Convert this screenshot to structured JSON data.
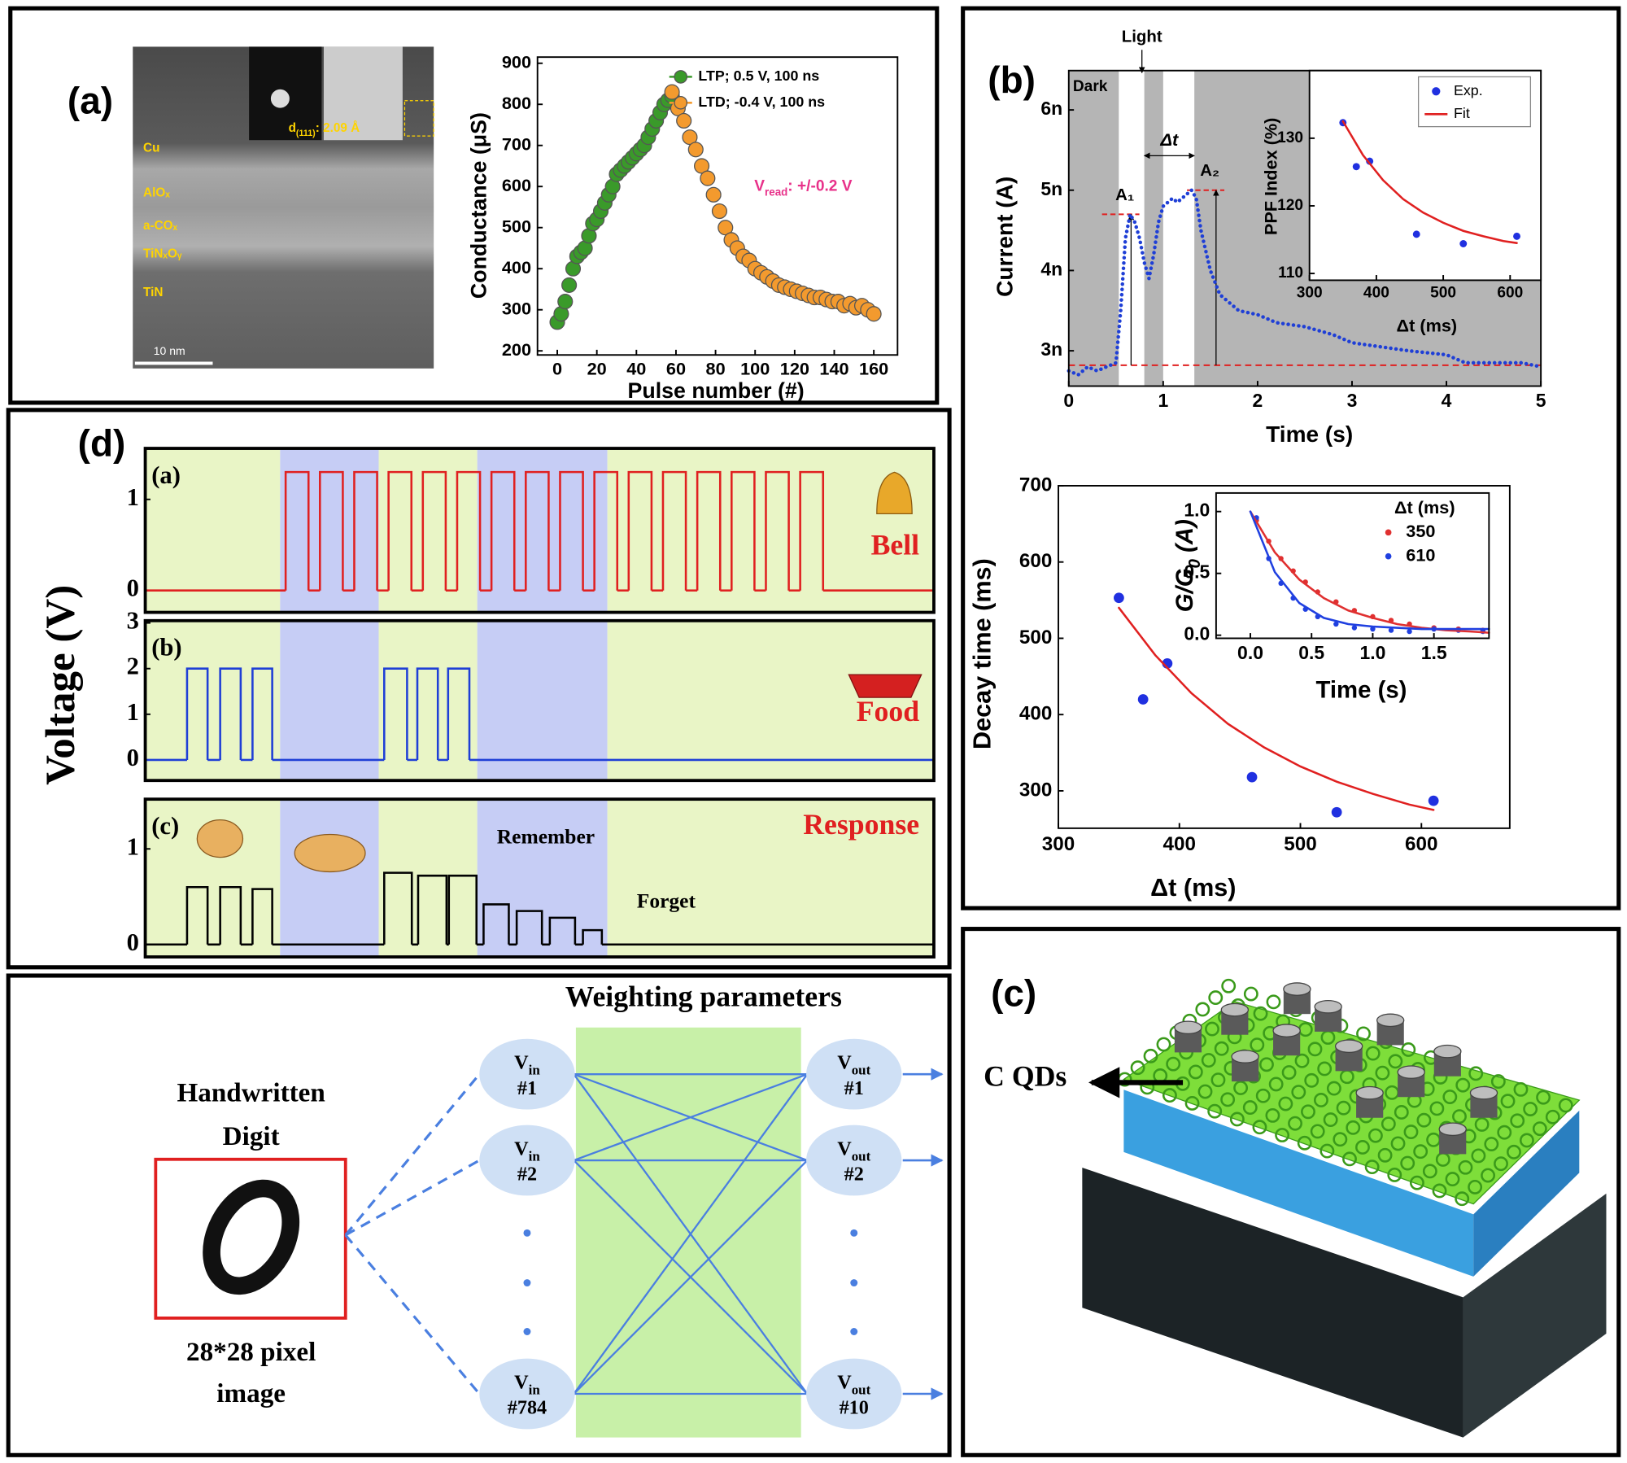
{
  "panel_labels": [
    "(a)",
    "(b)",
    "(c)",
    "(d)"
  ],
  "tem": {
    "layers": [
      "Cu",
      "AlOₓ",
      "a-COₓ",
      "TiNₓOᵧ",
      "TiN"
    ],
    "scale_bar": "10 nm",
    "d_spacing": {
      "symbol": "d",
      "sub": "(111)",
      "rest": ": 2.09 Å"
    }
  },
  "chart_data": [
    {
      "type": "scatter",
      "x_label": "Pulse number (#)",
      "y_label": "Conductance (μS)",
      "xlim": [
        -10,
        172
      ],
      "xticks": [
        0,
        20,
        40,
        60,
        80,
        100,
        120,
        140,
        160
      ],
      "ylim": [
        190,
        915
      ],
      "yticks": [
        200,
        300,
        400,
        500,
        600,
        700,
        800,
        900
      ],
      "legend": "upper right",
      "annotation": {
        "symbol": "V",
        "sub": "read",
        "rest": ": +/-0.2 V",
        "color": "#e8318a"
      },
      "series": [
        {
          "name": "LTP; 0.5 V, 100 ns",
          "color": "#3a9a2a",
          "x": [
            0,
            2,
            4,
            6,
            8,
            10,
            12,
            14,
            16,
            18,
            20,
            22,
            24,
            26,
            28,
            30,
            32,
            34,
            36,
            38,
            40,
            42,
            44,
            46,
            48,
            50,
            52,
            54,
            56,
            58
          ],
          "values": [
            270,
            290,
            320,
            360,
            400,
            430,
            440,
            450,
            480,
            510,
            520,
            540,
            560,
            580,
            600,
            630,
            640,
            650,
            660,
            670,
            680,
            690,
            700,
            720,
            740,
            760,
            780,
            800,
            810,
            820
          ]
        },
        {
          "name": "LTD; -0.4 V, 100 ns",
          "color": "#f39a2e",
          "x": [
            58,
            61,
            64,
            67,
            70,
            73,
            76,
            79,
            82,
            85,
            88,
            91,
            94,
            97,
            100,
            103,
            106,
            109,
            112,
            115,
            118,
            121,
            124,
            127,
            130,
            133,
            136,
            139,
            142,
            145,
            148,
            151,
            154,
            157,
            160
          ],
          "values": [
            830,
            790,
            760,
            720,
            690,
            650,
            620,
            580,
            540,
            500,
            470,
            450,
            430,
            420,
            400,
            390,
            380,
            370,
            360,
            355,
            350,
            345,
            340,
            335,
            330,
            330,
            325,
            320,
            320,
            310,
            315,
            305,
            310,
            300,
            290
          ]
        }
      ]
    },
    {
      "type": "scatter",
      "x_label": "Time (s)",
      "y_label": "Current (A)",
      "xlim": [
        0,
        5
      ],
      "xticks": [
        0,
        1,
        2,
        3,
        4,
        5
      ],
      "ylim": [
        2.56e-09,
        6.49e-09
      ],
      "yticks": [
        {
          "value": 3e-09,
          "label": "3n"
        },
        {
          "value": 4e-09,
          "label": "4n"
        },
        {
          "value": 5e-09,
          "label": "5n"
        },
        {
          "value": 6e-09,
          "label": "6n"
        }
      ],
      "shade_color": "#b5b5b5",
      "light_spans": [
        {
          "start": 0.53,
          "end": 0.8
        },
        {
          "start": 1.0,
          "end": 1.33
        }
      ],
      "dark_label": "Dark",
      "light_label": "Light",
      "interval_label": "Δt",
      "baseline": 2.82e-09,
      "peaks": [
        {
          "label": "A₁",
          "x": 0.66,
          "value": 4.7e-09
        },
        {
          "label": "A₂",
          "x": 1.56,
          "value": 5e-09
        }
      ],
      "series": [
        {
          "color": "#1f3fd6",
          "style": "dots",
          "x": [
            0,
            0.1,
            0.2,
            0.3,
            0.4,
            0.5,
            0.55,
            0.6,
            0.65,
            0.7,
            0.75,
            0.8,
            0.85,
            0.9,
            0.95,
            1.0,
            1.05,
            1.1,
            1.15,
            1.2,
            1.25,
            1.3,
            1.35,
            1.4,
            1.5,
            1.6,
            1.7,
            1.8,
            2.0,
            2.2,
            2.5,
            2.8,
            3.0,
            3.3,
            3.6,
            4.0,
            4.2,
            4.5,
            4.8,
            5.0
          ],
          "values": [
            2.75e-09,
            2.7e-09,
            2.8e-09,
            2.75e-09,
            2.8e-09,
            2.85e-09,
            3.5e-09,
            4.4e-09,
            4.7e-09,
            4.6e-09,
            4.4e-09,
            4.1e-09,
            3.9e-09,
            4.2e-09,
            4.6e-09,
            4.8e-09,
            4.85e-09,
            4.9e-09,
            4.85e-09,
            4.9e-09,
            4.95e-09,
            5e-09,
            4.9e-09,
            4.5e-09,
            4e-09,
            3.7e-09,
            3.6e-09,
            3.5e-09,
            3.45e-09,
            3.35e-09,
            3.3e-09,
            3.2e-09,
            3.1e-09,
            3.05e-09,
            3e-09,
            2.95e-09,
            2.85e-09,
            2.85e-09,
            2.85e-09,
            2.8e-09
          ]
        }
      ]
    },
    {
      "type": "scatter",
      "x_label": "Δt (ms)",
      "y_label": "PPF Index (%)",
      "xlim": [
        300,
        646
      ],
      "xticks": [
        300,
        400,
        500,
        600
      ],
      "ylim": [
        109,
        140
      ],
      "yticks": [
        110,
        120,
        130
      ],
      "legend": "upper right",
      "series": [
        {
          "name": "Exp.",
          "color": "#2030e0",
          "x": [
            350,
            370,
            390,
            460,
            530,
            610
          ],
          "values": [
            132.3,
            125.8,
            126.6,
            115.8,
            114.4,
            115.5
          ]
        },
        {
          "name": "Fit",
          "color": "#e02020",
          "style": "line",
          "x": [
            350,
            380,
            410,
            440,
            470,
            500,
            530,
            560,
            590,
            610
          ],
          "values": [
            132.5,
            127.5,
            123.8,
            121,
            119,
            117.5,
            116.3,
            115.5,
            114.8,
            114.5
          ]
        }
      ]
    },
    {
      "type": "scatter",
      "x_label": "Δt (ms)",
      "y_label": "Decay time (ms)",
      "xlim": [
        300,
        673
      ],
      "xticks": [
        300,
        400,
        500,
        600
      ],
      "ylim": [
        251,
        700
      ],
      "yticks": [
        300,
        400,
        500,
        600,
        700
      ],
      "series": [
        {
          "color": "#2030e0",
          "x": [
            350,
            370,
            390,
            460,
            530,
            610
          ],
          "values": [
            553,
            420,
            467,
            318,
            272,
            287
          ]
        },
        {
          "color": "#e02020",
          "style": "line",
          "x": [
            350,
            380,
            410,
            440,
            470,
            500,
            530,
            560,
            590,
            610
          ],
          "values": [
            540,
            478,
            428,
            388,
            357,
            332,
            312,
            296,
            282,
            275
          ]
        }
      ]
    },
    {
      "type": "scatter",
      "x_label": "Time (s)",
      "y_label": {
        "symbol": "G/G",
        "sub": "0",
        "rest": " (A)"
      },
      "xlim": [
        -0.28,
        1.95
      ],
      "xticks": [
        {
          "value": 0,
          "label": "0.0"
        },
        0.5,
        {
          "value": 1,
          "label": "1.0"
        },
        1.5
      ],
      "ylim": [
        -0.025,
        1.15
      ],
      "yticks": [
        {
          "value": 0,
          "label": "0.0"
        },
        0.5,
        {
          "value": 1,
          "label": "1.0"
        }
      ],
      "legend": "upper right",
      "legend_title": "Δt (ms)",
      "series": [
        {
          "name": "350",
          "color": "#e03030",
          "x": [
            0.05,
            0.15,
            0.25,
            0.35,
            0.45,
            0.55,
            0.7,
            0.85,
            1.0,
            1.15,
            1.3,
            1.5,
            1.7,
            1.9
          ],
          "values": [
            0.93,
            0.76,
            0.62,
            0.52,
            0.43,
            0.35,
            0.27,
            0.2,
            0.15,
            0.12,
            0.09,
            0.06,
            0.05,
            0.04
          ]
        },
        {
          "name": "610",
          "color": "#2040e0",
          "x": [
            0.05,
            0.15,
            0.25,
            0.35,
            0.45,
            0.55,
            0.7,
            0.85,
            1.0,
            1.15,
            1.3,
            1.5,
            1.7,
            1.9
          ],
          "values": [
            0.95,
            0.62,
            0.42,
            0.3,
            0.21,
            0.15,
            0.09,
            0.06,
            0.05,
            0.04,
            0.03,
            0.05,
            0.04,
            0.03
          ]
        },
        {
          "color": "#e03030",
          "style": "line",
          "x": [
            0,
            0.2,
            0.4,
            0.6,
            0.8,
            1.0,
            1.2,
            1.4,
            1.6,
            1.8,
            1.95
          ],
          "values": [
            1.0,
            0.67,
            0.45,
            0.3,
            0.2,
            0.14,
            0.09,
            0.06,
            0.04,
            0.03,
            0.02
          ]
        },
        {
          "color": "#2040e0",
          "style": "line",
          "x": [
            0,
            0.2,
            0.4,
            0.6,
            0.8,
            1.0,
            1.2,
            1.4,
            1.6,
            1.8,
            1.95
          ],
          "values": [
            1.0,
            0.51,
            0.26,
            0.14,
            0.09,
            0.07,
            0.06,
            0.05,
            0.05,
            0.05,
            0.05
          ]
        }
      ]
    },
    {
      "type": "pulse",
      "label": "(a)",
      "name": "Bell",
      "color": "#e02020",
      "xlim": [
        0,
        100
      ],
      "ylim": [
        -0.24,
        1.56
      ],
      "yticks": [
        0,
        1
      ],
      "pulses": [
        {
          "start": 17.8,
          "end": 20.7,
          "value": 1.3
        },
        {
          "start": 22.15,
          "end": 25.05,
          "value": 1.3
        },
        {
          "start": 26.5,
          "end": 29.4,
          "value": 1.3
        },
        {
          "start": 30.85,
          "end": 33.75,
          "value": 1.3
        },
        {
          "start": 35.2,
          "end": 38.1,
          "value": 1.3
        },
        {
          "start": 39.55,
          "end": 42.45,
          "value": 1.3
        },
        {
          "start": 43.9,
          "end": 46.8,
          "value": 1.3
        },
        {
          "start": 48.25,
          "end": 51.15,
          "value": 1.3
        },
        {
          "start": 52.6,
          "end": 55.5,
          "value": 1.3
        },
        {
          "start": 56.95,
          "end": 59.85,
          "value": 1.3
        },
        {
          "start": 61.3,
          "end": 64.2,
          "value": 1.3
        },
        {
          "start": 65.65,
          "end": 68.55,
          "value": 1.3
        },
        {
          "start": 70.0,
          "end": 72.9,
          "value": 1.3
        },
        {
          "start": 74.35,
          "end": 77.25,
          "value": 1.3
        },
        {
          "start": 78.7,
          "end": 81.6,
          "value": 1.3
        },
        {
          "start": 83.05,
          "end": 85.95,
          "value": 1.3
        }
      ]
    },
    {
      "type": "pulse",
      "label": "(b)",
      "name": "Food",
      "color": "#1f3fd6",
      "xlim": [
        0,
        100
      ],
      "ylim": [
        -0.45,
        3.05
      ],
      "yticks": [
        0,
        1,
        2,
        3
      ],
      "pulses": [
        {
          "start": 5.3,
          "end": 7.9,
          "value": 2.0
        },
        {
          "start": 9.5,
          "end": 12.1,
          "value": 2.0
        },
        {
          "start": 13.6,
          "end": 16.1,
          "value": 2.0
        },
        {
          "start": 30.3,
          "end": 33.2,
          "value": 2.0
        },
        {
          "start": 34.5,
          "end": 37.1,
          "value": 2.0
        },
        {
          "start": 38.4,
          "end": 41.1,
          "value": 2.0
        }
      ]
    },
    {
      "type": "pulse",
      "label": "(c)",
      "name": "Response",
      "color": "#000000",
      "xlim": [
        0,
        100
      ],
      "ylim": [
        -0.13,
        1.52
      ],
      "yticks": [
        0,
        1
      ],
      "pulses": [
        {
          "start": 5.3,
          "end": 7.9,
          "value": 0.6
        },
        {
          "start": 9.5,
          "end": 12.1,
          "value": 0.6
        },
        {
          "start": 13.6,
          "end": 16.1,
          "value": 0.58
        },
        {
          "start": 30.3,
          "end": 33.8,
          "value": 0.75
        },
        {
          "start": 34.6,
          "end": 38.2,
          "value": 0.72
        },
        {
          "start": 38.5,
          "end": 42.0,
          "value": 0.72
        },
        {
          "start": 42.9,
          "end": 46.1,
          "value": 0.42
        },
        {
          "start": 47.1,
          "end": 50.3,
          "value": 0.35
        },
        {
          "start": 51.3,
          "end": 54.5,
          "value": 0.28
        },
        {
          "start": 55.5,
          "end": 57.9,
          "value": 0.15
        }
      ],
      "notes": [
        "Remember",
        "Forget"
      ]
    }
  ],
  "panel_d": {
    "y_label": "Voltage (V)",
    "name_color": "#e02020",
    "phases": [
      {
        "start": 0,
        "end": 17.1,
        "color": "#e9f5c6"
      },
      {
        "start": 17.1,
        "end": 29.6,
        "color": "#c6cdf5"
      },
      {
        "start": 29.6,
        "end": 42.1,
        "color": "#e9f5c6"
      },
      {
        "start": 42.1,
        "end": 58.6,
        "color": "#c6cdf5"
      },
      {
        "start": 58.6,
        "end": 100,
        "color": "#e9f5c6"
      }
    ]
  },
  "network": {
    "title": "Weighting parameters",
    "digit_label": [
      "Handwritten",
      "Digit"
    ],
    "caption": [
      "28*28 pixel",
      "image"
    ],
    "inputs": [
      {
        "symbol": "V",
        "sub": "in",
        "index": "#1"
      },
      {
        "symbol": "V",
        "sub": "in",
        "index": "#2"
      },
      {
        "symbol": "V",
        "sub": "in",
        "index": "#784"
      }
    ],
    "outputs": [
      {
        "symbol": "V",
        "sub": "out",
        "index": "#1"
      },
      {
        "symbol": "V",
        "sub": "out",
        "index": "#2"
      },
      {
        "symbol": "V",
        "sub": "out",
        "index": "#10"
      }
    ]
  },
  "device": {
    "label": "C QDs"
  }
}
